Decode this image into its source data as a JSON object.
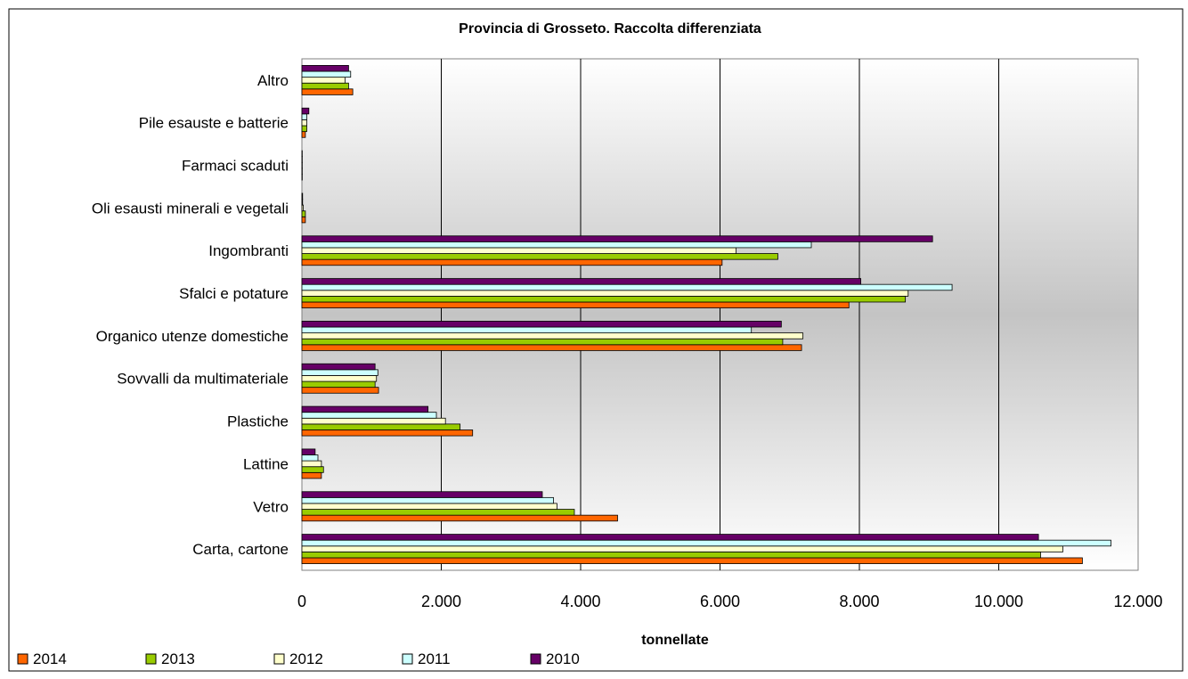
{
  "chart_data": {
    "type": "bar",
    "orientation": "horizontal",
    "title": "Provincia di Grosseto. Raccolta differenziata",
    "xlabel": "tonnellate",
    "ylabel": "",
    "xlim": [
      0,
      12000
    ],
    "xticks": [
      0,
      2000,
      4000,
      6000,
      8000,
      10000,
      12000
    ],
    "xtick_labels": [
      "0",
      "2.000",
      "4.000",
      "6.000",
      "8.000",
      "10.000",
      "12.000"
    ],
    "grid": "vertical",
    "legend_position": "bottom",
    "categories": [
      "Carta, cartone",
      "Vetro",
      "Lattine",
      "Plastiche",
      "Sovvalli da multimateriale",
      "Organico utenze domestiche",
      "Sfalci e potature",
      "Ingombranti",
      "Oli esausti minerali e vegetali",
      "Farmaci scaduti",
      "Pile esauste e batterie",
      "Altro"
    ],
    "series": [
      {
        "name": "2014",
        "color": "#ff6600",
        "values": [
          11200,
          4530,
          280,
          2450,
          1100,
          7170,
          7850,
          6030,
          50,
          5,
          50,
          730
        ]
      },
      {
        "name": "2013",
        "color": "#99cc00",
        "values": [
          10600,
          3910,
          310,
          2270,
          1050,
          6900,
          8660,
          6830,
          50,
          5,
          70,
          670
        ]
      },
      {
        "name": "2012",
        "color": "#ffffcc",
        "values": [
          10920,
          3660,
          280,
          2060,
          1070,
          7190,
          8700,
          6230,
          20,
          5,
          70,
          620
        ]
      },
      {
        "name": "2011",
        "color": "#ccffff",
        "values": [
          11610,
          3610,
          230,
          1930,
          1090,
          6450,
          9330,
          7310,
          10,
          5,
          70,
          700
        ]
      },
      {
        "name": "2010",
        "color": "#660066",
        "values": [
          10570,
          3450,
          190,
          1810,
          1050,
          6880,
          8020,
          9050,
          10,
          5,
          100,
          670
        ]
      }
    ]
  }
}
